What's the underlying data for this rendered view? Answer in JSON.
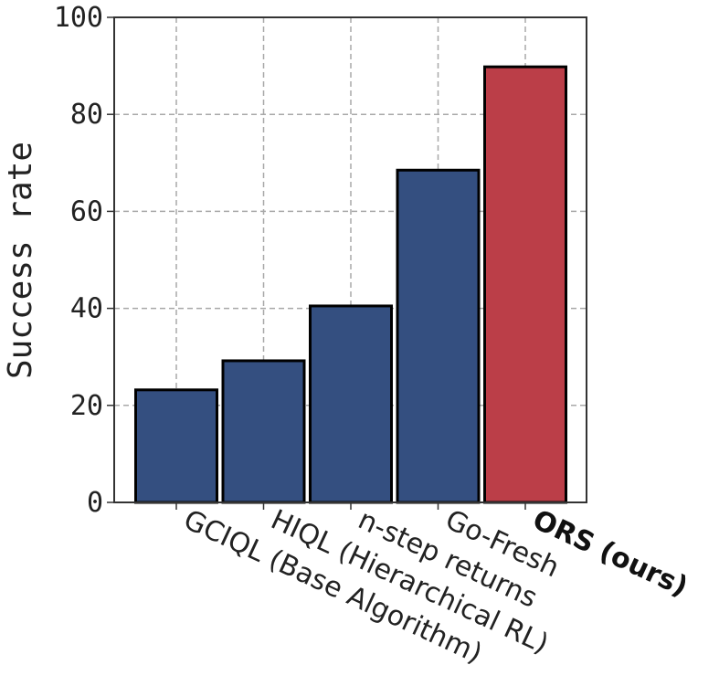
{
  "chart_data": {
    "type": "bar",
    "title": "",
    "xlabel": "",
    "ylabel": "Success rate",
    "ylim": [
      0,
      100
    ],
    "yticks": [
      0,
      20,
      40,
      60,
      80,
      100
    ],
    "grid": true,
    "legend": null,
    "categories": [
      "GCIQL (Base Algorithm)",
      "HIQL (Hierarchical RL)",
      "n-step returns",
      "Go-Fresh",
      "ORS (ours)"
    ],
    "values": [
      23.2,
      29.2,
      40.5,
      68.5,
      89.8
    ],
    "bar_colors": [
      "#344f80",
      "#344f80",
      "#344f80",
      "#344f80",
      "#bb3e48"
    ],
    "highlight_category": "ORS (ours)",
    "xtick_rotation_deg": 25
  },
  "colors": {
    "baseline_bar": "#344f80",
    "ours_bar": "#bb3e48",
    "edge": "#000000",
    "grid": "#a8a8a8"
  }
}
